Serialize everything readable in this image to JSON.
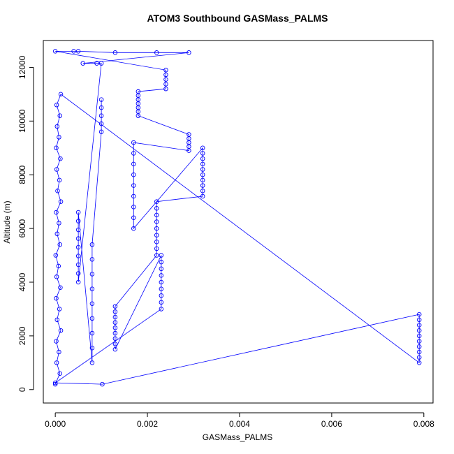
{
  "chart_data": {
    "type": "line",
    "title": "ATOM3 Southbound GASMass_PALMS",
    "x_label": "GASMass_PALMS",
    "y_label": "Altitude (m)",
    "xlim": [
      -0.00026,
      0.0082
    ],
    "ylim": [
      -500,
      13000
    ],
    "xticks": [
      {
        "value": 0,
        "label": "0.000"
      },
      {
        "value": 0.002,
        "label": "0.002"
      },
      {
        "value": 0.004,
        "label": "0.004"
      },
      {
        "value": 0.006,
        "label": "0.006"
      },
      {
        "value": 0.008,
        "label": "0.008"
      }
    ],
    "yticks": [
      0,
      2000,
      4000,
      6000,
      8000,
      10000,
      12000
    ],
    "grid": false,
    "series": [
      {
        "name": "GASMass_PALMS",
        "color": "#0000ff",
        "x": [
          0.0,
          0.0001,
          3e-05,
          8e-05,
          2e-05,
          0.00012,
          4e-05,
          9e-05,
          2e-05,
          0.00011,
          3e-05,
          7e-05,
          1e-05,
          0.0001,
          4e-05,
          8e-05,
          2e-05,
          0.00012,
          5e-05,
          9e-05,
          3e-05,
          0.00011,
          2e-05,
          8e-05,
          4e-05,
          0.0001,
          3e-05,
          0.00012,
          0.0079,
          0.0079,
          0.0079,
          0.0079,
          0.0079,
          0.0079,
          0.0079,
          0.0079,
          0.0079,
          0.0079,
          0.00102,
          0.0,
          0.0023,
          0.0023,
          0.0023,
          0.0023,
          0.0023,
          0.0023,
          0.0023,
          0.0023,
          0.0023,
          0.0013,
          0.0013,
          0.0013,
          0.0013,
          0.0013,
          0.0013,
          0.0013,
          0.0013,
          0.0013,
          0.0022,
          0.0022,
          0.0022,
          0.0022,
          0.0022,
          0.0022,
          0.0022,
          0.0022,
          0.0022,
          0.0032,
          0.0032,
          0.0032,
          0.0032,
          0.0032,
          0.0032,
          0.0032,
          0.0032,
          0.0032,
          0.0032,
          0.0017,
          0.0017,
          0.0017,
          0.0017,
          0.0017,
          0.0017,
          0.0017,
          0.0017,
          0.0017,
          0.0029,
          0.0029,
          0.0029,
          0.0029,
          0.0029,
          0.0018,
          0.0018,
          0.0018,
          0.0018,
          0.0018,
          0.0018,
          0.0018,
          0.0024,
          0.0024,
          0.0024,
          0.0024,
          0.0024,
          0.0,
          0.0004,
          0.0005,
          0.0013,
          0.0022,
          0.0029,
          0.0006,
          0.0009,
          0.001,
          0.0005,
          0.0005,
          0.0005,
          0.0005,
          0.0005,
          0.0005,
          0.0005,
          0.0005,
          0.0005,
          0.0008,
          0.0008,
          0.0008,
          0.0008,
          0.0008,
          0.0008,
          0.0008,
          0.0008,
          0.0008,
          0.001,
          0.001,
          0.001,
          0.001,
          0.001
        ],
        "values": [
          200,
          600,
          1000,
          1400,
          1800,
          2200,
          2600,
          3000,
          3400,
          3800,
          4200,
          4600,
          5000,
          5400,
          5800,
          6200,
          6600,
          7000,
          7400,
          7800,
          8200,
          8600,
          9000,
          9400,
          9800,
          10200,
          10600,
          11000,
          1000,
          1200,
          1400,
          1600,
          1800,
          2000,
          2200,
          2400,
          2600,
          2800,
          200,
          250,
          3000,
          3250,
          3500,
          3750,
          4000,
          4250,
          4500,
          4750,
          5000,
          1500,
          1700,
          1900,
          2100,
          2300,
          2500,
          2700,
          2900,
          3100,
          5000,
          5250,
          5500,
          5750,
          6000,
          6250,
          6500,
          6750,
          7000,
          7200,
          7400,
          7600,
          7800,
          8000,
          8200,
          8400,
          8600,
          8800,
          9000,
          6000,
          6400,
          6800,
          7200,
          7600,
          8000,
          8400,
          8800,
          9200,
          8900,
          9050,
          9200,
          9350,
          9500,
          10200,
          10350,
          10500,
          10650,
          10800,
          10950,
          11100,
          11200,
          11375,
          11550,
          11725,
          11900,
          12600,
          12600,
          12600,
          12550,
          12550,
          12550,
          12150,
          12150,
          12150,
          4000,
          4325,
          4650,
          4975,
          5300,
          5625,
          5950,
          6275,
          6600,
          1000,
          1550,
          2100,
          2650,
          3200,
          3750,
          4300,
          4850,
          5400,
          9600,
          9900,
          10200,
          10500,
          10800
        ]
      }
    ]
  }
}
